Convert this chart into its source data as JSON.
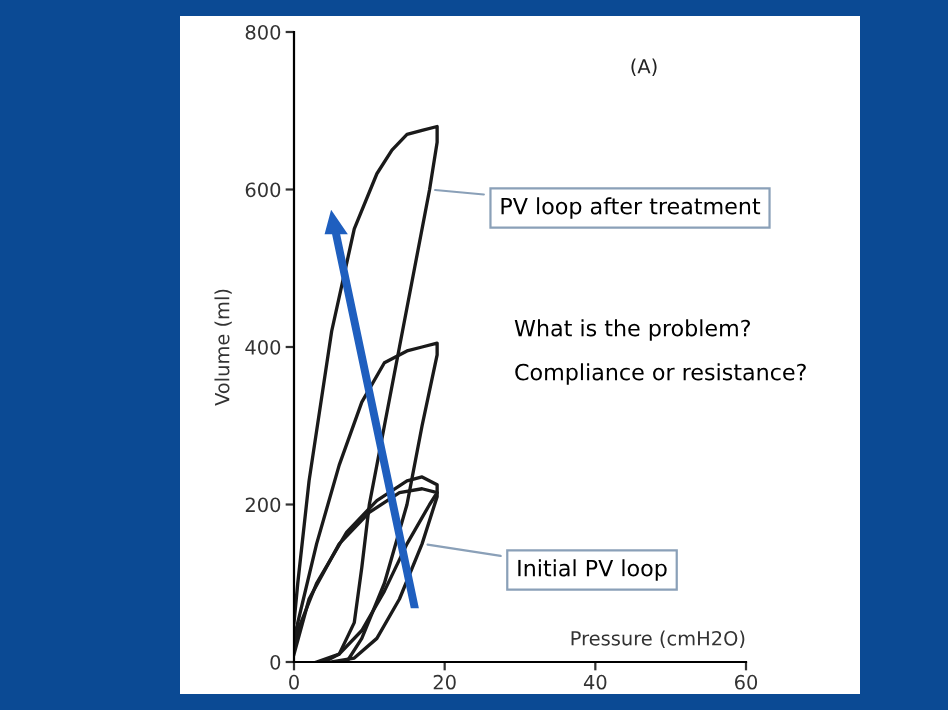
{
  "chart_data": {
    "type": "line",
    "title": "(A)",
    "xlabel": "Pressure (cmH2O)",
    "ylabel": "Volume (ml)",
    "series": [
      {
        "color": "#1a1a1a",
        "x": [
          4,
          6,
          8,
          9,
          10,
          12,
          14,
          16,
          18,
          19,
          19,
          17,
          15,
          13,
          11,
          8,
          5,
          2,
          0.5,
          0
        ],
        "values": [
          0,
          10,
          50,
          120,
          200,
          300,
          400,
          500,
          600,
          660,
          680,
          675,
          670,
          650,
          620,
          550,
          420,
          230,
          100,
          50
        ]
      },
      {
        "color": "#1a1a1a",
        "x": [
          7,
          9,
          12,
          15,
          17,
          19,
          19,
          17,
          15,
          12,
          9,
          6,
          3,
          0.5,
          0
        ],
        "values": [
          0,
          30,
          100,
          200,
          300,
          390,
          405,
          400,
          395,
          380,
          330,
          250,
          150,
          50,
          30
        ]
      },
      {
        "color": "#1a1a1a",
        "x": [
          5,
          8,
          11,
          14,
          17,
          19,
          19,
          17,
          15,
          11,
          7,
          3,
          0.5,
          0
        ],
        "values": [
          0,
          5,
          30,
          80,
          150,
          210,
          225,
          235,
          230,
          205,
          165,
          100,
          40,
          20
        ]
      },
      {
        "color": "#1a1a1a",
        "x": [
          3,
          6,
          9,
          12,
          15,
          18,
          19,
          17,
          14,
          10,
          6,
          2,
          0
        ],
        "values": [
          0,
          10,
          40,
          90,
          150,
          200,
          215,
          220,
          215,
          190,
          150,
          80,
          10
        ]
      }
    ],
    "xlim": [
      0,
      60
    ],
    "xticks": [
      0,
      20,
      40,
      60
    ],
    "ylim": [
      0,
      800
    ],
    "yticks": [
      0,
      200,
      400,
      600,
      800
    ],
    "grid": false,
    "legend": false,
    "marker": "none",
    "line_style": "solid",
    "annotations": [
      {
        "text": "PV loop after treatment",
        "x": 18,
        "y": 600
      },
      {
        "text": "Initial PV loop",
        "x": 17,
        "y": 150
      },
      "What is the problem?",
      "Compliance or resistance?"
    ]
  }
}
